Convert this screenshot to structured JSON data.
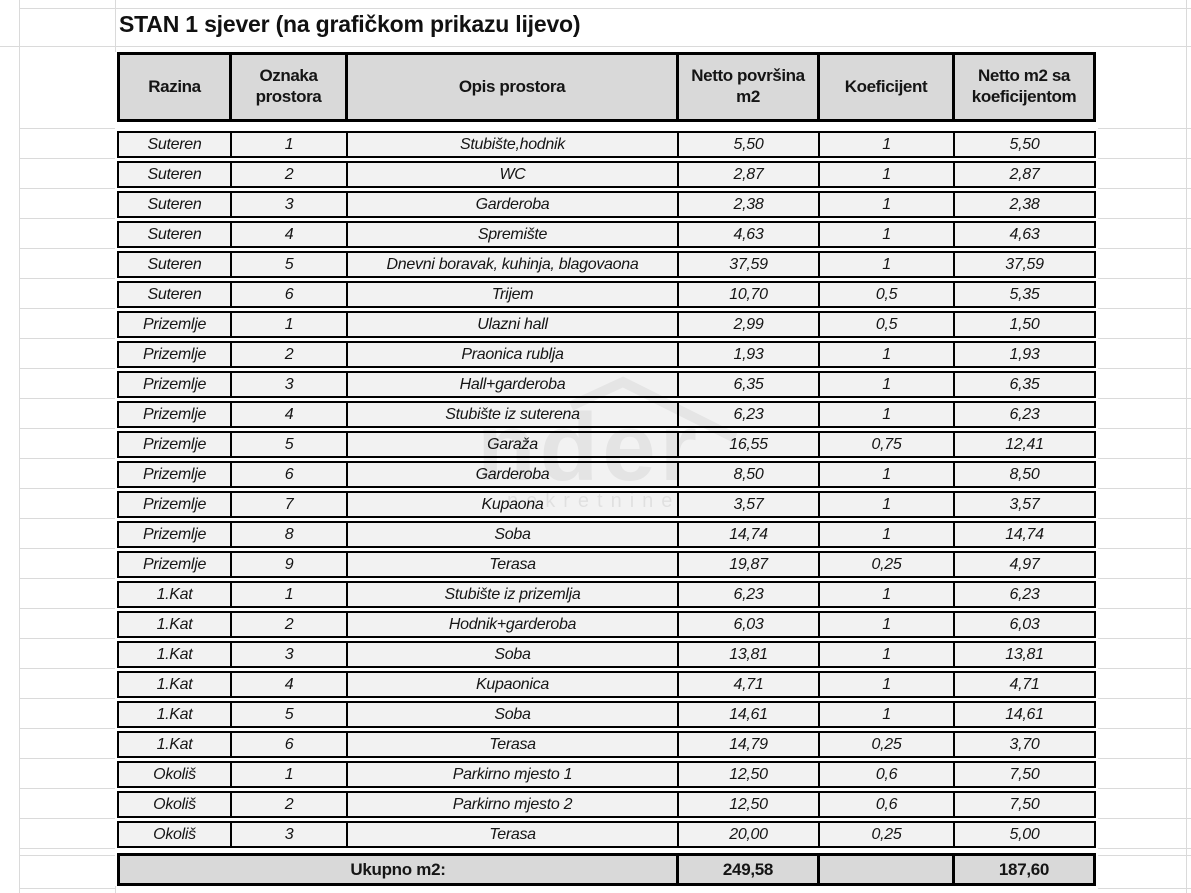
{
  "title": "STAN 1 sjever (na grafičkom prikazu lijevo)",
  "table": {
    "columns": [
      "Razina",
      "Oznaka prostora",
      "Opis prostora",
      "Netto površina m2",
      "Koeficijent",
      "Netto m2 sa koeficijentom"
    ],
    "rows": [
      [
        "Suteren",
        "1",
        "Stubište,hodnik",
        "5,50",
        "1",
        "5,50"
      ],
      [
        "Suteren",
        "2",
        "WC",
        "2,87",
        "1",
        "2,87"
      ],
      [
        "Suteren",
        "3",
        "Garderoba",
        "2,38",
        "1",
        "2,38"
      ],
      [
        "Suteren",
        "4",
        "Spremište",
        "4,63",
        "1",
        "4,63"
      ],
      [
        "Suteren",
        "5",
        "Dnevni boravak, kuhinja, blagovaona",
        "37,59",
        "1",
        "37,59"
      ],
      [
        "Suteren",
        "6",
        "Trijem",
        "10,70",
        "0,5",
        "5,35"
      ],
      [
        "Prizemlje",
        "1",
        "Ulazni hall",
        "2,99",
        "0,5",
        "1,50"
      ],
      [
        "Prizemlje",
        "2",
        "Praonica rublja",
        "1,93",
        "1",
        "1,93"
      ],
      [
        "Prizemlje",
        "3",
        "Hall+garderoba",
        "6,35",
        "1",
        "6,35"
      ],
      [
        "Prizemlje",
        "4",
        "Stubište iz suterena",
        "6,23",
        "1",
        "6,23"
      ],
      [
        "Prizemlje",
        "5",
        "Garaža",
        "16,55",
        "0,75",
        "12,41"
      ],
      [
        "Prizemlje",
        "6",
        "Garderoba",
        "8,50",
        "1",
        "8,50"
      ],
      [
        "Prizemlje",
        "7",
        "Kupaona",
        "3,57",
        "1",
        "3,57"
      ],
      [
        "Prizemlje",
        "8",
        "Soba",
        "14,74",
        "1",
        "14,74"
      ],
      [
        "Prizemlje",
        "9",
        "Terasa",
        "19,87",
        "0,25",
        "4,97"
      ],
      [
        "1.Kat",
        "1",
        "Stubište iz prizemlja",
        "6,23",
        "1",
        "6,23"
      ],
      [
        "1.Kat",
        "2",
        "Hodnik+garderoba",
        "6,03",
        "1",
        "6,03"
      ],
      [
        "1.Kat",
        "3",
        "Soba",
        "13,81",
        "1",
        "13,81"
      ],
      [
        "1.Kat",
        "4",
        "Kupaonica",
        "4,71",
        "1",
        "4,71"
      ],
      [
        "1.Kat",
        "5",
        "Soba",
        "14,61",
        "1",
        "14,61"
      ],
      [
        "1.Kat",
        "6",
        "Terasa",
        "14,79",
        "0,25",
        "3,70"
      ],
      [
        "Okoliš",
        "1",
        "Parkirno mjesto 1",
        "12,50",
        "0,6",
        "7,50"
      ],
      [
        "Okoliš",
        "2",
        "Parkirno mjesto 2",
        "12,50",
        "0,6",
        "7,50"
      ],
      [
        "Okoliš",
        "3",
        "Terasa",
        "20,00",
        "0,25",
        "5,00"
      ]
    ],
    "total": {
      "label": "Ukupno m2:",
      "netto": "249,58",
      "koeficijent": "",
      "netto_koef": "187,60"
    }
  },
  "watermark": {
    "text_large": "nder",
    "text_small": "nekretnine"
  },
  "colors": {
    "header_fill": "#d9d9d9",
    "row_fill": "#f2f2f2",
    "total_fill": "#d9d9d9",
    "border": "#000000",
    "gridline": "#dadada"
  }
}
